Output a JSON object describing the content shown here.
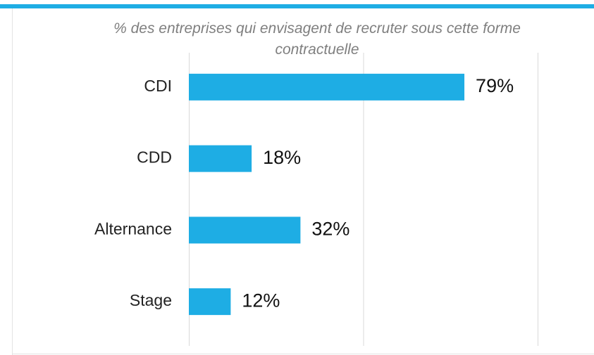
{
  "chart_data": {
    "type": "bar",
    "orientation": "horizontal",
    "title": "% des entreprises qui envisagent de recruter sous cette forme contractuelle",
    "categories": [
      "CDI",
      "CDD",
      "Alternance",
      "Stage"
    ],
    "values": [
      79,
      18,
      32,
      12
    ],
    "value_labels": [
      "79%",
      "18%",
      "32%",
      "12%"
    ],
    "color": "#1eade4",
    "xlim": [
      0,
      100
    ],
    "xticks": [
      0,
      50,
      100
    ],
    "grid": true
  }
}
